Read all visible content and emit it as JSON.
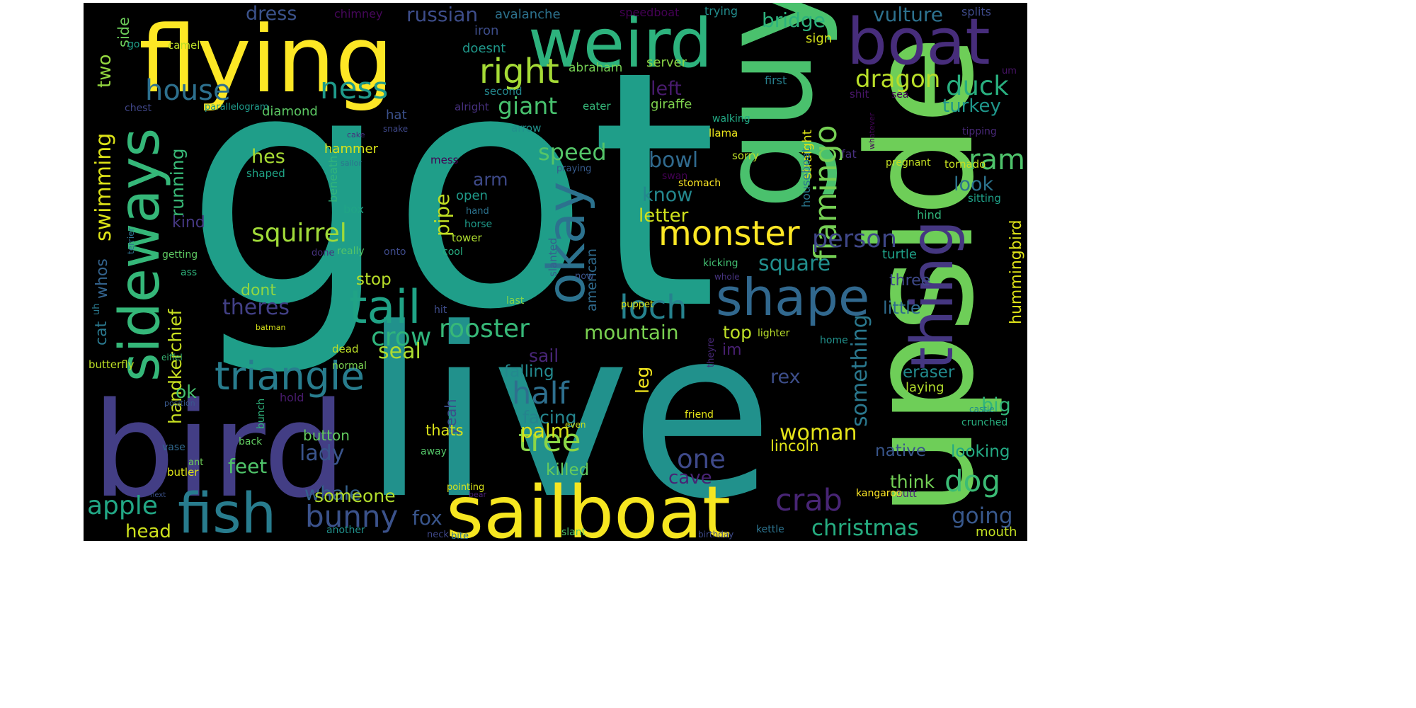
{
  "palette": {
    "background": "#000000",
    "dark_purple": "#440154",
    "purple": "#482878",
    "indigo": "#3e4989",
    "blue": "#31688e",
    "teal_blue": "#26828e",
    "teal": "#1f9e89",
    "green": "#35b779",
    "light_green": "#6ece58",
    "lime": "#b5de2b",
    "yellow": "#fde725"
  },
  "words": [
    {
      "text": "got",
      "color": "#1f9e89"
    },
    {
      "text": "live",
      "color": "#21918c"
    },
    {
      "text": "bird",
      "color": "#433e85"
    },
    {
      "text": "upside",
      "color": "#6ece58"
    },
    {
      "text": "guy",
      "color": "#4ac16d"
    },
    {
      "text": "flying",
      "color": "#fde725"
    },
    {
      "text": "weird",
      "color": "#2db27d"
    },
    {
      "text": "boat",
      "color": "#472d7b"
    },
    {
      "text": "sailboat",
      "color": "#f6e620"
    },
    {
      "text": "sideways",
      "color": "#35b779"
    },
    {
      "text": "thing",
      "color": "#453781"
    },
    {
      "text": "fish",
      "color": "#287c8e"
    },
    {
      "text": "okay",
      "color": "#2c728e"
    },
    {
      "text": "shape",
      "color": "#31688e"
    },
    {
      "text": "tail",
      "color": "#20a386"
    },
    {
      "text": "triangle",
      "color": "#287d8e"
    },
    {
      "text": "monster",
      "color": "#fde725"
    },
    {
      "text": "right",
      "color": "#a5db36"
    },
    {
      "text": "house",
      "color": "#2d708e"
    },
    {
      "text": "ness",
      "color": "#1f9a8a"
    },
    {
      "text": "loch",
      "color": "#26828e"
    },
    {
      "text": "flamingo",
      "color": "#75d054"
    },
    {
      "text": "squirrel",
      "color": "#a0da39"
    },
    {
      "text": "crab",
      "color": "#482575"
    },
    {
      "text": "bunny",
      "color": "#3b528b"
    },
    {
      "text": "apple",
      "color": "#22a785"
    },
    {
      "text": "tree",
      "color": "#8bd646"
    },
    {
      "text": "half",
      "color": "#2e6f8e"
    },
    {
      "text": "dog",
      "color": "#3bbb75"
    },
    {
      "text": "dragon",
      "color": "#b8de29"
    },
    {
      "text": "duck",
      "color": "#29af7f"
    },
    {
      "text": "ram",
      "color": "#4ec36b"
    },
    {
      "text": "crow",
      "color": "#2fb47c"
    },
    {
      "text": "rooster",
      "color": "#37b878"
    },
    {
      "text": "swimming",
      "color": "#dde318"
    },
    {
      "text": "giant",
      "color": "#48c16e"
    },
    {
      "text": "speed",
      "color": "#54c568"
    },
    {
      "text": "one",
      "color": "#3e4989"
    },
    {
      "text": "person",
      "color": "#3f4788"
    },
    {
      "text": "something",
      "color": "#2a788e"
    },
    {
      "text": "woman",
      "color": "#e5e419"
    },
    {
      "text": "christmas",
      "color": "#26ad81"
    },
    {
      "text": "going",
      "color": "#38588c"
    },
    {
      "text": "mountain",
      "color": "#7ad151"
    },
    {
      "text": "seal",
      "color": "#addc30"
    },
    {
      "text": "theres",
      "color": "#424086"
    },
    {
      "text": "lady",
      "color": "#3a548c"
    },
    {
      "text": "fox",
      "color": "#39558c"
    },
    {
      "text": "bowl",
      "color": "#306a8e"
    },
    {
      "text": "palm",
      "color": "#d8e219"
    },
    {
      "text": "square",
      "color": "#218f8d"
    },
    {
      "text": "pipe",
      "color": "#c2df23"
    },
    {
      "text": "hes",
      "color": "#a8db34"
    },
    {
      "text": "head",
      "color": "#cde11d"
    },
    {
      "text": "whale",
      "color": "#34618d"
    },
    {
      "text": "feet",
      "color": "#4fc46a"
    },
    {
      "text": "someone",
      "color": "#b2dd2d"
    },
    {
      "text": "handkerchief",
      "color": "#c8e020"
    },
    {
      "text": "vulture",
      "color": "#2d718e"
    },
    {
      "text": "bridge",
      "color": "#2db27d"
    },
    {
      "text": "russian",
      "color": "#3d4d8a"
    },
    {
      "text": "dress",
      "color": "#3b528b"
    },
    {
      "text": "two",
      "color": "#95d840"
    },
    {
      "text": "turkey",
      "color": "#1f968b"
    },
    {
      "text": "look",
      "color": "#2c738e"
    },
    {
      "text": "know",
      "color": "#24878e"
    },
    {
      "text": "letter",
      "color": "#d0e11c"
    },
    {
      "text": "running",
      "color": "#38b977"
    },
    {
      "text": "hummingbird",
      "color": "#dfe318"
    },
    {
      "text": "left",
      "color": "#481b6d"
    },
    {
      "text": "top",
      "color": "#bddf26"
    },
    {
      "text": "rex",
      "color": "#3d4e8a"
    },
    {
      "text": "facing",
      "color": "#25858e"
    },
    {
      "text": "big",
      "color": "#32b67a"
    },
    {
      "text": "little",
      "color": "#2f6c8e"
    },
    {
      "text": "stop",
      "color": "#b8de29"
    },
    {
      "text": "ok",
      "color": "#46c06f"
    },
    {
      "text": "leg",
      "color": "#f1e51d"
    },
    {
      "text": "cave",
      "color": "#482475"
    },
    {
      "text": "think",
      "color": "#73d056"
    },
    {
      "text": "sail",
      "color": "#482677"
    },
    {
      "text": "arm",
      "color": "#3e4a89"
    },
    {
      "text": "falling",
      "color": "#23898e"
    },
    {
      "text": "killed",
      "color": "#65cb5e"
    },
    {
      "text": "eraser",
      "color": "#228b8d"
    },
    {
      "text": "native",
      "color": "#39568c"
    },
    {
      "text": "looking",
      "color": "#23a983"
    },
    {
      "text": "whos",
      "color": "#33638d"
    },
    {
      "text": "cat",
      "color": "#2a788e"
    },
    {
      "text": "side",
      "color": "#6ccd5a"
    },
    {
      "text": "kind",
      "color": "#453882"
    },
    {
      "text": "three",
      "color": "#3e4989"
    },
    {
      "text": "dont",
      "color": "#91d742"
    },
    {
      "text": "american",
      "color": "#2f6b8e"
    },
    {
      "text": "lincoln",
      "color": "#e2e418"
    },
    {
      "text": "yeah",
      "color": "#3c4f8a"
    },
    {
      "text": "thats",
      "color": "#dae319"
    },
    {
      "text": "button",
      "color": "#63cb5f"
    },
    {
      "text": "open",
      "color": "#1f9a8a"
    },
    {
      "text": "im",
      "color": "#482071"
    },
    {
      "text": "laying",
      "color": "#b2dd2d"
    },
    {
      "text": "straight",
      "color": "#dfe318"
    },
    {
      "text": "houseboat",
      "color": "#2a778e"
    },
    {
      "text": "diamond",
      "color": "#5cc863"
    },
    {
      "text": "chimney",
      "color": "#46075a"
    },
    {
      "text": "avalanche",
      "color": "#2c728e"
    },
    {
      "text": "speedboat",
      "color": "#440154"
    },
    {
      "text": "trying",
      "color": "#228d8d"
    },
    {
      "text": "splits",
      "color": "#3e4a89"
    },
    {
      "text": "iron",
      "color": "#3d4d8a"
    },
    {
      "text": "doesnt",
      "color": "#1f988b"
    },
    {
      "text": "sign",
      "color": "#d5e21a"
    },
    {
      "text": "abraham",
      "color": "#75d054"
    },
    {
      "text": "server",
      "color": "#8bd646"
    },
    {
      "text": "first",
      "color": "#27808e"
    },
    {
      "text": "second",
      "color": "#23888e"
    },
    {
      "text": "shit",
      "color": "#481668"
    },
    {
      "text": "sea",
      "color": "#440256"
    },
    {
      "text": "um",
      "color": "#481467"
    },
    {
      "text": "chest",
      "color": "#404688"
    },
    {
      "text": "parallelogram",
      "color": "#1f9a8a"
    },
    {
      "text": "alright",
      "color": "#46307e"
    },
    {
      "text": "eater",
      "color": "#35b779"
    },
    {
      "text": "giraffe",
      "color": "#7fd34e"
    },
    {
      "text": "walking",
      "color": "#22a884"
    },
    {
      "text": "hat",
      "color": "#3b518b"
    },
    {
      "text": "arrow",
      "color": "#21918c"
    },
    {
      "text": "llama",
      "color": "#ece51b"
    },
    {
      "text": "camel",
      "color": "#bade28"
    },
    {
      "text": "go",
      "color": "#1f9e89"
    },
    {
      "text": "hammer",
      "color": "#dae319"
    },
    {
      "text": "cake",
      "color": "#46307e"
    },
    {
      "text": "snake",
      "color": "#3f4889"
    },
    {
      "text": "mess",
      "color": "#440154"
    },
    {
      "text": "shaped",
      "color": "#20a486"
    },
    {
      "text": "sailor",
      "color": "#2c728e"
    },
    {
      "text": "praying",
      "color": "#375b8d"
    },
    {
      "text": "beneath",
      "color": "#31b57b"
    },
    {
      "text": "swan",
      "color": "#440154"
    },
    {
      "text": "stomach",
      "color": "#fde725"
    },
    {
      "text": "sorry",
      "color": "#bddf26"
    },
    {
      "text": "fat",
      "color": "#472f7d"
    },
    {
      "text": "whatever",
      "color": "#450559"
    },
    {
      "text": "pregnant",
      "color": "#c2df23"
    },
    {
      "text": "tornado",
      "color": "#c8e020"
    },
    {
      "text": "tipping",
      "color": "#482878"
    },
    {
      "text": "sitting",
      "color": "#1fa188"
    },
    {
      "text": "hind",
      "color": "#31b57b"
    },
    {
      "text": "box",
      "color": "#20a486"
    },
    {
      "text": "hand",
      "color": "#2c728e"
    },
    {
      "text": "horse",
      "color": "#1e9b8a"
    },
    {
      "text": "tower",
      "color": "#addc30"
    },
    {
      "text": "terrier",
      "color": "#2d708e"
    },
    {
      "text": "getting",
      "color": "#5ec962"
    },
    {
      "text": "done",
      "color": "#46327e"
    },
    {
      "text": "really",
      "color": "#54c568"
    },
    {
      "text": "onto",
      "color": "#3e4a89"
    },
    {
      "text": "cool",
      "color": "#27ad81"
    },
    {
      "text": "slanted",
      "color": "#355f8d"
    },
    {
      "text": "now",
      "color": "#3b528b"
    },
    {
      "text": "kicking",
      "color": "#42be71"
    },
    {
      "text": "whole",
      "color": "#46337f"
    },
    {
      "text": "turtle",
      "color": "#1fa188"
    },
    {
      "text": "ass",
      "color": "#2fb47c"
    },
    {
      "text": "uh",
      "color": "#2a788e"
    },
    {
      "text": "puppet",
      "color": "#dde318"
    },
    {
      "text": "last",
      "color": "#84d44b"
    },
    {
      "text": "hit",
      "color": "#3e4c8a"
    },
    {
      "text": "batman",
      "color": "#d8e219"
    },
    {
      "text": "lighter",
      "color": "#b8de29"
    },
    {
      "text": "home",
      "color": "#21918c"
    },
    {
      "text": "dead",
      "color": "#bddf26"
    },
    {
      "text": "normal",
      "color": "#7ad151"
    },
    {
      "text": "eiffel",
      "color": "#38b977"
    },
    {
      "text": "butterfly",
      "color": "#bddf26"
    },
    {
      "text": "theyre",
      "color": "#482878"
    },
    {
      "text": "hold",
      "color": "#481b6d"
    },
    {
      "text": "bunch",
      "color": "#2fb47c"
    },
    {
      "text": "position",
      "color": "#38598c"
    },
    {
      "text": "castle",
      "color": "#228c8d"
    },
    {
      "text": "crunched",
      "color": "#29af7f"
    },
    {
      "text": "friend",
      "color": "#e2e418"
    },
    {
      "text": "even",
      "color": "#cde11d"
    },
    {
      "text": "vase",
      "color": "#31688e"
    },
    {
      "text": "back",
      "color": "#60ca60"
    },
    {
      "text": "away",
      "color": "#54c568"
    },
    {
      "text": "ant",
      "color": "#6ece58"
    },
    {
      "text": "butler",
      "color": "#dde318"
    },
    {
      "text": "next",
      "color": "#3b528b"
    },
    {
      "text": "bear",
      "color": "#482071"
    },
    {
      "text": "pointing",
      "color": "#dae319"
    },
    {
      "text": "butt",
      "color": "#482475"
    },
    {
      "text": "kangaroo",
      "color": "#fde725"
    },
    {
      "text": "mouth",
      "color": "#c2df23"
    },
    {
      "text": "neck",
      "color": "#3f4788"
    },
    {
      "text": "another",
      "color": "#21918c"
    },
    {
      "text": "bite",
      "color": "#2c728e"
    },
    {
      "text": "slant",
      "color": "#4ec36b"
    },
    {
      "text": "birthday",
      "color": "#3e4a89"
    },
    {
      "text": "kettle",
      "color": "#2c738e"
    }
  ]
}
